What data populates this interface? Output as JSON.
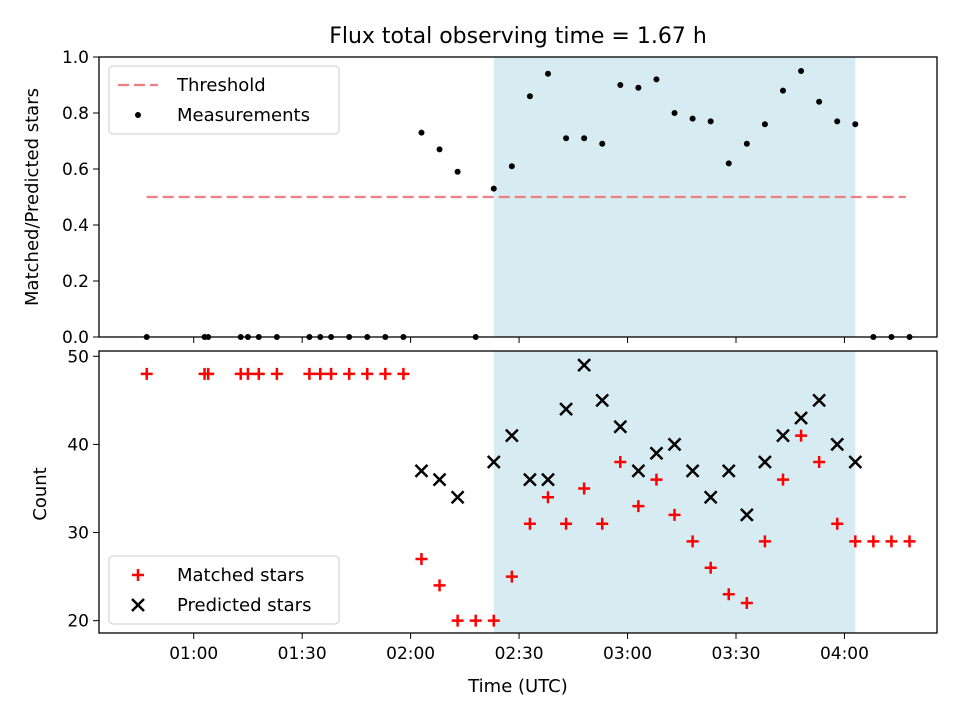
{
  "chart_data": [
    {
      "type": "scatter",
      "title": "Flux total observing time = 1.67 h",
      "xlabel": "",
      "ylabel": "Matched/Predicted stars",
      "ylim": [
        0,
        1.0
      ],
      "yticks": [
        "0.0",
        "0.2",
        "0.4",
        "0.6",
        "0.8",
        "1.0"
      ],
      "highlight": {
        "from": "02:23",
        "to": "04:03",
        "color": "#add8e6"
      },
      "threshold": {
        "name": "Threshold",
        "value": 0.5,
        "from": "00:47",
        "to": "04:17",
        "color": "#f08080"
      },
      "legend": "top-left",
      "series": [
        {
          "name": "Measurements",
          "color": "#000000",
          "x": [
            "00:47",
            "01:03",
            "01:04",
            "01:13",
            "01:15",
            "01:18",
            "01:23",
            "01:32",
            "01:35",
            "01:38",
            "01:43",
            "01:48",
            "01:53",
            "01:58",
            "02:03",
            "02:08",
            "02:13",
            "02:18",
            "02:23",
            "02:28",
            "02:33",
            "02:38",
            "02:43",
            "02:48",
            "02:53",
            "02:58",
            "03:03",
            "03:08",
            "03:13",
            "03:18",
            "03:23",
            "03:28",
            "03:33",
            "03:38",
            "03:43",
            "03:48",
            "03:53",
            "03:58",
            "04:03",
            "04:08",
            "04:13",
            "04:18"
          ],
          "y": [
            0,
            0,
            0,
            0,
            0,
            0,
            0,
            0,
            0,
            0,
            0,
            0,
            0,
            0,
            0.73,
            0.67,
            0.59,
            0,
            0.53,
            0.61,
            0.86,
            0.94,
            0.71,
            0.71,
            0.69,
            0.9,
            0.89,
            0.92,
            0.8,
            0.78,
            0.77,
            0.62,
            0.69,
            0.76,
            0.88,
            0.95,
            0.84,
            0.77,
            0.76,
            0,
            0,
            0
          ]
        }
      ]
    },
    {
      "type": "scatter",
      "title": "",
      "xlabel": "Time (UTC)",
      "ylabel": "Count",
      "ylim": [
        18.6,
        50.6
      ],
      "yticks": [
        "20",
        "30",
        "40",
        "50"
      ],
      "xticks": [
        "01:00",
        "01:30",
        "02:00",
        "02:30",
        "03:00",
        "03:30",
        "04:00"
      ],
      "highlight": {
        "from": "02:23",
        "to": "04:03",
        "color": "#add8e6"
      },
      "legend": "bottom-left",
      "series": [
        {
          "name": "Matched stars",
          "marker": "plus",
          "color": "#ff0000",
          "x": [
            "00:47",
            "01:03",
            "01:04",
            "01:13",
            "01:15",
            "01:18",
            "01:23",
            "01:32",
            "01:35",
            "01:38",
            "01:43",
            "01:48",
            "01:53",
            "01:58",
            "02:03",
            "02:08",
            "02:13",
            "02:18",
            "02:23",
            "02:28",
            "02:33",
            "02:38",
            "02:43",
            "02:48",
            "02:53",
            "02:58",
            "03:03",
            "03:08",
            "03:13",
            "03:18",
            "03:23",
            "03:28",
            "03:33",
            "03:38",
            "03:43",
            "03:48",
            "03:53",
            "03:58",
            "04:03",
            "04:08",
            "04:13",
            "04:18"
          ],
          "y": [
            48,
            48,
            48,
            48,
            48,
            48,
            48,
            48,
            48,
            48,
            48,
            48,
            48,
            48,
            27,
            24,
            20,
            20,
            20,
            25,
            31,
            34,
            31,
            35,
            31,
            38,
            33,
            36,
            32,
            29,
            26,
            23,
            22,
            29,
            36,
            41,
            38,
            31,
            29,
            29,
            29,
            29
          ]
        },
        {
          "name": "Predicted stars",
          "marker": "x",
          "color": "#000000",
          "x": [
            "02:03",
            "02:08",
            "02:13",
            "02:23",
            "02:28",
            "02:33",
            "02:38",
            "02:43",
            "02:48",
            "02:53",
            "02:58",
            "03:03",
            "03:08",
            "03:13",
            "03:18",
            "03:23",
            "03:28",
            "03:33",
            "03:38",
            "03:43",
            "03:48",
            "03:53",
            "03:58",
            "04:03"
          ],
          "y": [
            37,
            36,
            34,
            38,
            41,
            36,
            36,
            44,
            49,
            45,
            42,
            37,
            39,
            40,
            37,
            34,
            37,
            32,
            38,
            41,
            43,
            45,
            40,
            38
          ]
        }
      ]
    }
  ]
}
